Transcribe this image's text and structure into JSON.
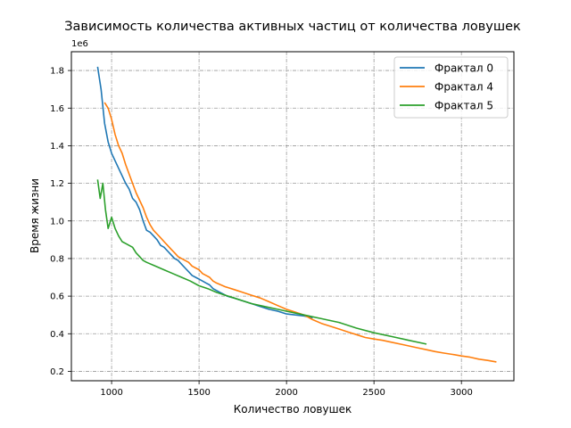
{
  "chart_data": {
    "type": "line",
    "title": "Зависимость количества активных частиц от количества ловушек",
    "xlabel": "Количество ловушек",
    "ylabel": "Время жизни",
    "offset_text": "1e6",
    "xlim": [
      770,
      3300
    ],
    "ylim": [
      150000,
      1900000
    ],
    "xticks": [
      1000,
      1500,
      2000,
      2500,
      3000
    ],
    "xtick_labels": [
      "1000",
      "1500",
      "2000",
      "2500",
      "3000"
    ],
    "yticks": [
      200000,
      400000,
      600000,
      800000,
      1000000,
      1200000,
      1400000,
      1600000,
      1800000
    ],
    "ytick_labels": [
      "0.2",
      "0.4",
      "0.6",
      "0.8",
      "1.0",
      "1.2",
      "1.4",
      "1.6",
      "1.8"
    ],
    "grid": true,
    "legend_position": "top-right",
    "series": [
      {
        "name": "Фрактал 0",
        "color": "#1f77b4",
        "x": [
          920,
          940,
          960,
          980,
          1000,
          1020,
          1040,
          1060,
          1080,
          1100,
          1120,
          1140,
          1160,
          1180,
          1200,
          1220,
          1240,
          1260,
          1280,
          1300,
          1320,
          1340,
          1360,
          1380,
          1400,
          1420,
          1440,
          1460,
          1480,
          1500,
          1520,
          1540,
          1560,
          1580,
          1600,
          1620,
          1640,
          1660,
          1680,
          1700,
          1750,
          1800,
          1850,
          1900,
          1950,
          2000,
          2050,
          2100,
          2150
        ],
        "y": [
          1820000,
          1700000,
          1520000,
          1420000,
          1360000,
          1320000,
          1280000,
          1240000,
          1200000,
          1170000,
          1120000,
          1100000,
          1060000,
          1000000,
          950000,
          940000,
          920000,
          900000,
          870000,
          860000,
          840000,
          820000,
          800000,
          790000,
          770000,
          750000,
          730000,
          710000,
          700000,
          690000,
          680000,
          670000,
          660000,
          640000,
          630000,
          620000,
          610000,
          600000,
          595000,
          590000,
          575000,
          560000,
          545000,
          530000,
          520000,
          505000,
          500000,
          495000,
          485000
        ]
      },
      {
        "name": "Фрактал 4",
        "color": "#ff7f0e",
        "x": [
          960,
          980,
          1000,
          1020,
          1040,
          1060,
          1080,
          1100,
          1120,
          1140,
          1160,
          1180,
          1200,
          1220,
          1240,
          1260,
          1280,
          1300,
          1320,
          1340,
          1360,
          1380,
          1400,
          1420,
          1440,
          1460,
          1480,
          1500,
          1520,
          1540,
          1560,
          1580,
          1600,
          1650,
          1700,
          1750,
          1800,
          1850,
          1900,
          1950,
          2000,
          2050,
          2100,
          2150,
          2200,
          2250,
          2300,
          2350,
          2400,
          2450,
          2500,
          2550,
          2600,
          2650,
          2700,
          2750,
          2800,
          2850,
          2900,
          2950,
          3000,
          3050,
          3100,
          3150,
          3200
        ],
        "y": [
          1630000,
          1600000,
          1540000,
          1460000,
          1400000,
          1360000,
          1300000,
          1250000,
          1200000,
          1150000,
          1110000,
          1070000,
          1020000,
          980000,
          950000,
          930000,
          910000,
          890000,
          870000,
          850000,
          830000,
          810000,
          800000,
          790000,
          780000,
          760000,
          750000,
          740000,
          720000,
          710000,
          700000,
          680000,
          670000,
          650000,
          635000,
          620000,
          605000,
          590000,
          570000,
          550000,
          530000,
          515000,
          500000,
          475000,
          455000,
          440000,
          425000,
          410000,
          395000,
          380000,
          372000,
          365000,
          355000,
          345000,
          335000,
          325000,
          315000,
          305000,
          297000,
          290000,
          282000,
          275000,
          265000,
          258000,
          250000
        ]
      },
      {
        "name": "Фрактал 5",
        "color": "#2ca02c",
        "x": [
          920,
          935,
          950,
          965,
          980,
          1000,
          1020,
          1040,
          1060,
          1080,
          1100,
          1120,
          1140,
          1160,
          1180,
          1200,
          1250,
          1300,
          1350,
          1400,
          1450,
          1500,
          1550,
          1600,
          1650,
          1700,
          1750,
          1800,
          1850,
          1900,
          1950,
          2000,
          2100,
          2200,
          2300,
          2400,
          2500,
          2600,
          2700,
          2800
        ],
        "y": [
          1220000,
          1120000,
          1200000,
          1060000,
          960000,
          1020000,
          960000,
          920000,
          890000,
          880000,
          870000,
          860000,
          830000,
          810000,
          790000,
          780000,
          760000,
          740000,
          720000,
          700000,
          680000,
          655000,
          640000,
          620000,
          605000,
          590000,
          575000,
          560000,
          550000,
          540000,
          530000,
          520000,
          500000,
          480000,
          460000,
          430000,
          405000,
          385000,
          365000,
          345000
        ]
      }
    ]
  }
}
